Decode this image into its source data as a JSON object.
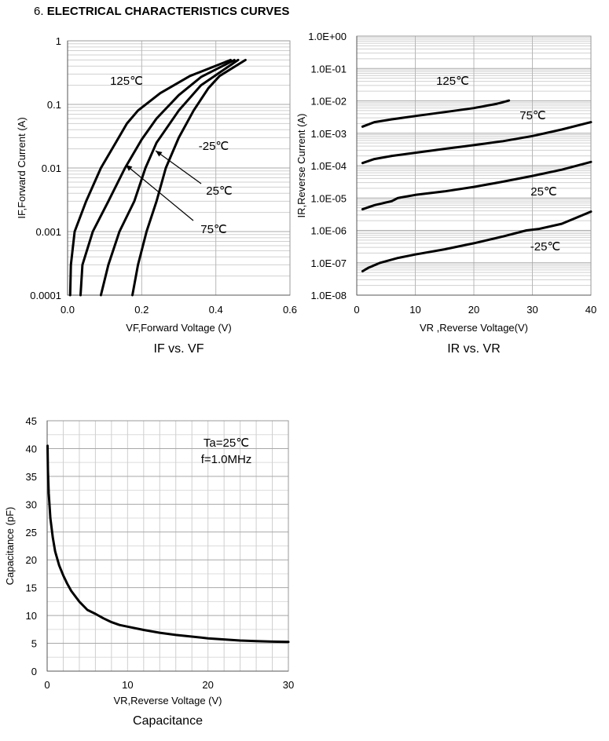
{
  "heading": {
    "number": "6.",
    "text": "ELECTRICAL CHARACTERISTICS CURVES"
  },
  "chart_data": [
    {
      "type": "line",
      "title": "IF vs. VF",
      "xlabel": "VF,Forward Voltage (V)",
      "ylabel": "IF,Forward Current (A)",
      "xscale": "linear",
      "yscale": "log",
      "xlim": [
        0,
        0.6
      ],
      "ylim": [
        0.0001,
        1
      ],
      "xticks": [
        "0.0",
        "0.2",
        "0.4",
        "0.6"
      ],
      "yticks": [
        "0.0001",
        "0.001",
        "0.01",
        "0.1",
        "1"
      ],
      "grid": true,
      "series": [
        {
          "name": "125℃",
          "points": [
            [
              0.007,
              0.0001
            ],
            [
              0.009,
              0.0003
            ],
            [
              0.019,
              0.001
            ],
            [
              0.05,
              0.003
            ],
            [
              0.09,
              0.01
            ],
            [
              0.13,
              0.025
            ],
            [
              0.16,
              0.05
            ],
            [
              0.19,
              0.08
            ],
            [
              0.25,
              0.15
            ],
            [
              0.33,
              0.28
            ],
            [
              0.44,
              0.5
            ]
          ]
        },
        {
          "name": "75℃",
          "points": [
            [
              0.035,
              0.0001
            ],
            [
              0.04,
              0.0003
            ],
            [
              0.068,
              0.001
            ],
            [
              0.11,
              0.003
            ],
            [
              0.155,
              0.01
            ],
            [
              0.2,
              0.028
            ],
            [
              0.24,
              0.06
            ],
            [
              0.3,
              0.14
            ],
            [
              0.36,
              0.27
            ],
            [
              0.45,
              0.5
            ]
          ]
        },
        {
          "name": "25℃",
          "points": [
            [
              0.09,
              0.0001
            ],
            [
              0.11,
              0.0003
            ],
            [
              0.14,
              0.001
            ],
            [
              0.18,
              0.003
            ],
            [
              0.21,
              0.01
            ],
            [
              0.24,
              0.025
            ],
            [
              0.3,
              0.08
            ],
            [
              0.36,
              0.2
            ],
            [
              0.46,
              0.5
            ]
          ]
        },
        {
          "name": "-25℃",
          "points": [
            [
              0.175,
              0.0001
            ],
            [
              0.19,
              0.0003
            ],
            [
              0.213,
              0.001
            ],
            [
              0.24,
              0.003
            ],
            [
              0.265,
              0.01
            ],
            [
              0.3,
              0.03
            ],
            [
              0.34,
              0.08
            ],
            [
              0.38,
              0.18
            ],
            [
              0.41,
              0.28
            ],
            [
              0.48,
              0.5
            ]
          ]
        }
      ],
      "annotations": [
        {
          "text": "125℃"
        },
        {
          "text": "-25℃"
        },
        {
          "text": "25℃"
        },
        {
          "text": "75℃"
        }
      ]
    },
    {
      "type": "line",
      "title": "IR vs. VR",
      "xlabel": "VR ,Reverse Voltage(V)",
      "ylabel": "IR,Reverse Current (A)",
      "xscale": "linear",
      "yscale": "log",
      "xlim": [
        0,
        40
      ],
      "ylim": [
        1e-08,
        1
      ],
      "xticks": [
        "0",
        "10",
        "20",
        "30",
        "40"
      ],
      "yticks": [
        "1.0E-08",
        "1.0E-07",
        "1.0E-06",
        "1.0E-05",
        "1.0E-04",
        "1.0E-03",
        "1.0E-02",
        "1.0E-01",
        "1.0E+00"
      ],
      "grid": true,
      "series": [
        {
          "name": "125℃",
          "points": [
            [
              1,
              0.0016
            ],
            [
              3,
              0.0022
            ],
            [
              6,
              0.0027
            ],
            [
              10,
              0.0034
            ],
            [
              15,
              0.0045
            ],
            [
              20,
              0.006
            ],
            [
              24,
              0.0082
            ],
            [
              26,
              0.0102
            ]
          ]
        },
        {
          "name": "75℃",
          "points": [
            [
              1,
              0.00012
            ],
            [
              3,
              0.00016
            ],
            [
              6,
              0.0002
            ],
            [
              10,
              0.00025
            ],
            [
              15,
              0.00033
            ],
            [
              20,
              0.00043
            ],
            [
              25,
              0.00057
            ],
            [
              30,
              0.00082
            ],
            [
              35,
              0.0013
            ],
            [
              40,
              0.0022
            ]
          ]
        },
        {
          "name": "25℃",
          "points": [
            [
              1,
              4.5e-06
            ],
            [
              3,
              6e-06
            ],
            [
              6,
              8e-06
            ],
            [
              7,
              1e-05
            ],
            [
              10,
              1.25e-05
            ],
            [
              15,
              1.6e-05
            ],
            [
              20,
              2.2e-05
            ],
            [
              25,
              3.2e-05
            ],
            [
              30,
              4.8e-05
            ],
            [
              35,
              7.5e-05
            ],
            [
              40,
              0.00013
            ]
          ]
        },
        {
          "name": "-25℃",
          "points": [
            [
              1,
              5.5e-08
            ],
            [
              2,
              7e-08
            ],
            [
              4,
              1e-07
            ],
            [
              7,
              1.4e-07
            ],
            [
              10,
              1.8e-07
            ],
            [
              15,
              2.6e-07
            ],
            [
              20,
              4e-07
            ],
            [
              25,
              6.5e-07
            ],
            [
              29,
              1e-06
            ],
            [
              31,
              1.1e-06
            ],
            [
              35,
              1.6e-06
            ],
            [
              40,
              3.8e-06
            ]
          ]
        }
      ],
      "annotations": [
        {
          "text": "125℃"
        },
        {
          "text": "75℃"
        },
        {
          "text": "25℃"
        },
        {
          "text": "-25℃"
        }
      ]
    },
    {
      "type": "line",
      "title": "Capacitance",
      "xlabel": "VR,Reverse Voltage (V)",
      "ylabel": "Capacitance (pF)",
      "xscale": "linear",
      "yscale": "linear",
      "xlim": [
        0,
        30
      ],
      "ylim": [
        0,
        45
      ],
      "xticks": [
        "0",
        "10",
        "20",
        "30"
      ],
      "yticks": [
        "0",
        "5",
        "10",
        "15",
        "20",
        "25",
        "30",
        "35",
        "40",
        "45"
      ],
      "grid": true,
      "series": [
        {
          "name": "",
          "points": [
            [
              0.05,
              40.5
            ],
            [
              0.1,
              36
            ],
            [
              0.2,
              32
            ],
            [
              0.4,
              27.5
            ],
            [
              0.7,
              24
            ],
            [
              1,
              21.5
            ],
            [
              1.5,
              19
            ],
            [
              2,
              17.2
            ],
            [
              2.5,
              15.7
            ],
            [
              3,
              14.4
            ],
            [
              4,
              12.5
            ],
            [
              5,
              11
            ],
            [
              6,
              10.3
            ],
            [
              7,
              9.5
            ],
            [
              8,
              8.8
            ],
            [
              9,
              8.3
            ],
            [
              10,
              8
            ],
            [
              12,
              7.4
            ],
            [
              14,
              6.9
            ],
            [
              16,
              6.5
            ],
            [
              18,
              6.2
            ],
            [
              20,
              5.9
            ],
            [
              22,
              5.7
            ],
            [
              24,
              5.5
            ],
            [
              26,
              5.4
            ],
            [
              28,
              5.3
            ],
            [
              30,
              5.25
            ]
          ]
        }
      ],
      "annotations": [
        {
          "text": "Ta=25℃"
        },
        {
          "text": "f=1.0MHz"
        }
      ]
    }
  ]
}
